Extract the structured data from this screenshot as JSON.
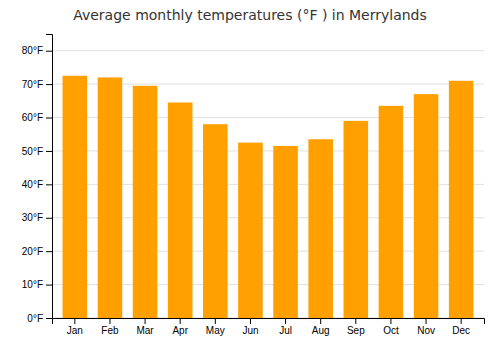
{
  "chart_data": {
    "type": "bar",
    "title": "Average monthly temperatures (°F ) in Merrylands",
    "categories": [
      "Jan",
      "Feb",
      "Mar",
      "Apr",
      "May",
      "Jun",
      "Jul",
      "Aug",
      "Sep",
      "Oct",
      "Nov",
      "Dec"
    ],
    "values": [
      72.5,
      72.0,
      69.5,
      64.5,
      58.0,
      52.5,
      51.5,
      53.5,
      59.0,
      63.5,
      67.0,
      71.0
    ],
    "color": "#FFA000",
    "ylim": [
      0,
      85
    ],
    "yticks": [
      {
        "value": 0,
        "label": "0°F"
      },
      {
        "value": 10,
        "label": "10°F"
      },
      {
        "value": 20,
        "label": "20°F"
      },
      {
        "value": 30,
        "label": "30°F"
      },
      {
        "value": 40,
        "label": "40°F"
      },
      {
        "value": 50,
        "label": "50°F"
      },
      {
        "value": 60,
        "label": "60°F"
      },
      {
        "value": 70,
        "label": "70°F"
      },
      {
        "value": 80,
        "label": "80°F"
      }
    ],
    "grid": true
  }
}
